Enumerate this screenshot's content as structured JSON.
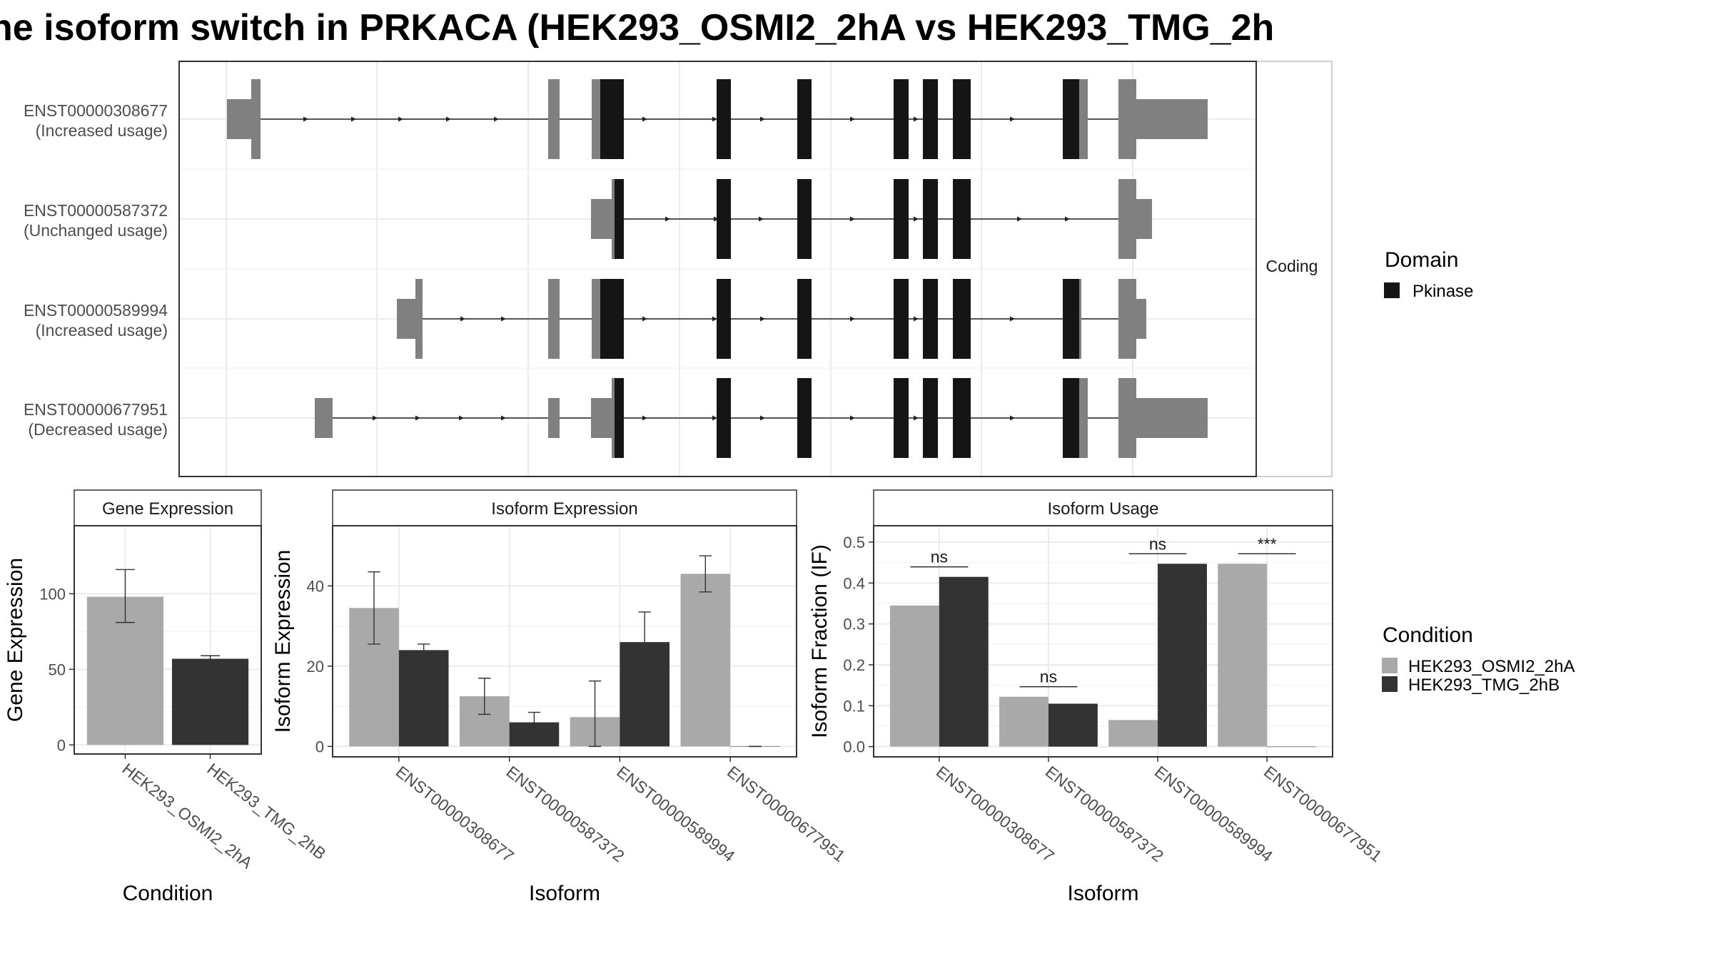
{
  "title": "he isoform switch in PRKACA (HEK293_OSMI2_2hA vs HEK293_TMG_2h",
  "colors": {
    "osmi": "#a9a9a9",
    "tmg": "#333333",
    "utr": "#808080",
    "domain": "#151515",
    "panel_border": "#333333",
    "strip_fill": "#ffffff",
    "grid": "#ebebeb"
  },
  "structure": {
    "strip_label": "Coding",
    "transcripts": [
      {
        "id": "ENST00000308677",
        "usage": "(Increased usage)"
      },
      {
        "id": "ENST00000587372",
        "usage": "(Unchanged usage)"
      },
      {
        "id": "ENST00000589994",
        "usage": "(Increased usage)"
      },
      {
        "id": "ENST00000677951",
        "usage": "(Decreased usage)"
      }
    ],
    "legend": {
      "title": "Domain",
      "items": [
        "Pkinase"
      ]
    }
  },
  "chart_data": [
    {
      "type": "bar",
      "strip_title": "Gene Expression",
      "xlabel": "Condition",
      "ylabel": "Gene Expression",
      "ylim": [
        -6,
        145
      ],
      "yticks": [
        0,
        50,
        100
      ],
      "categories": [
        "HEK293_OSMI2_2hA",
        "HEK293_TMG_2hB"
      ],
      "values": [
        98,
        57
      ],
      "error_low": [
        81,
        55
      ],
      "error_high": [
        116,
        59
      ],
      "grid": true
    },
    {
      "type": "bar",
      "strip_title": "Isoform Expression",
      "xlabel": "Isoform",
      "ylabel": "Isoform Expression",
      "ylim": [
        -2.6,
        55
      ],
      "yticks": [
        0,
        20,
        40
      ],
      "categories": [
        "ENST00000308677",
        "ENST00000587372",
        "ENST00000589994",
        "ENST00000677951"
      ],
      "series": [
        {
          "name": "HEK293_OSMI2_2hA",
          "values": [
            34.5,
            12.5,
            7.3,
            43
          ],
          "error_low": [
            25.5,
            8,
            0,
            38.5
          ],
          "error_high": [
            43.5,
            17,
            16.3,
            47.5
          ]
        },
        {
          "name": "HEK293_TMG_2hB",
          "values": [
            24,
            6,
            26,
            0
          ],
          "error_low": [
            22.5,
            4,
            18.7,
            0
          ],
          "error_high": [
            25.5,
            8.5,
            33.5,
            0
          ]
        }
      ],
      "grid": true
    },
    {
      "type": "bar",
      "strip_title": "Isoform Usage",
      "xlabel": "Isoform",
      "ylabel": "Isoform Fraction (IF)",
      "ylim": [
        -0.025,
        0.54
      ],
      "yticks": [
        0.0,
        0.1,
        0.2,
        0.3,
        0.4,
        0.5
      ],
      "ytick_labels": [
        "0.0",
        "0.1",
        "0.2",
        "0.3",
        "0.4",
        "0.5"
      ],
      "categories": [
        "ENST00000308677",
        "ENST00000587372",
        "ENST00000589994",
        "ENST00000677951"
      ],
      "series": [
        {
          "name": "HEK293_OSMI2_2hA",
          "values": [
            0.345,
            0.122,
            0.065,
            0.447
          ]
        },
        {
          "name": "HEK293_TMG_2hB",
          "values": [
            0.415,
            0.105,
            0.447,
            0
          ]
        }
      ],
      "significance": [
        "ns",
        "ns",
        "ns",
        "***"
      ],
      "grid": true
    }
  ],
  "condition_legend": {
    "title": "Condition",
    "items": [
      "HEK293_OSMI2_2hA",
      "HEK293_TMG_2hB"
    ]
  }
}
